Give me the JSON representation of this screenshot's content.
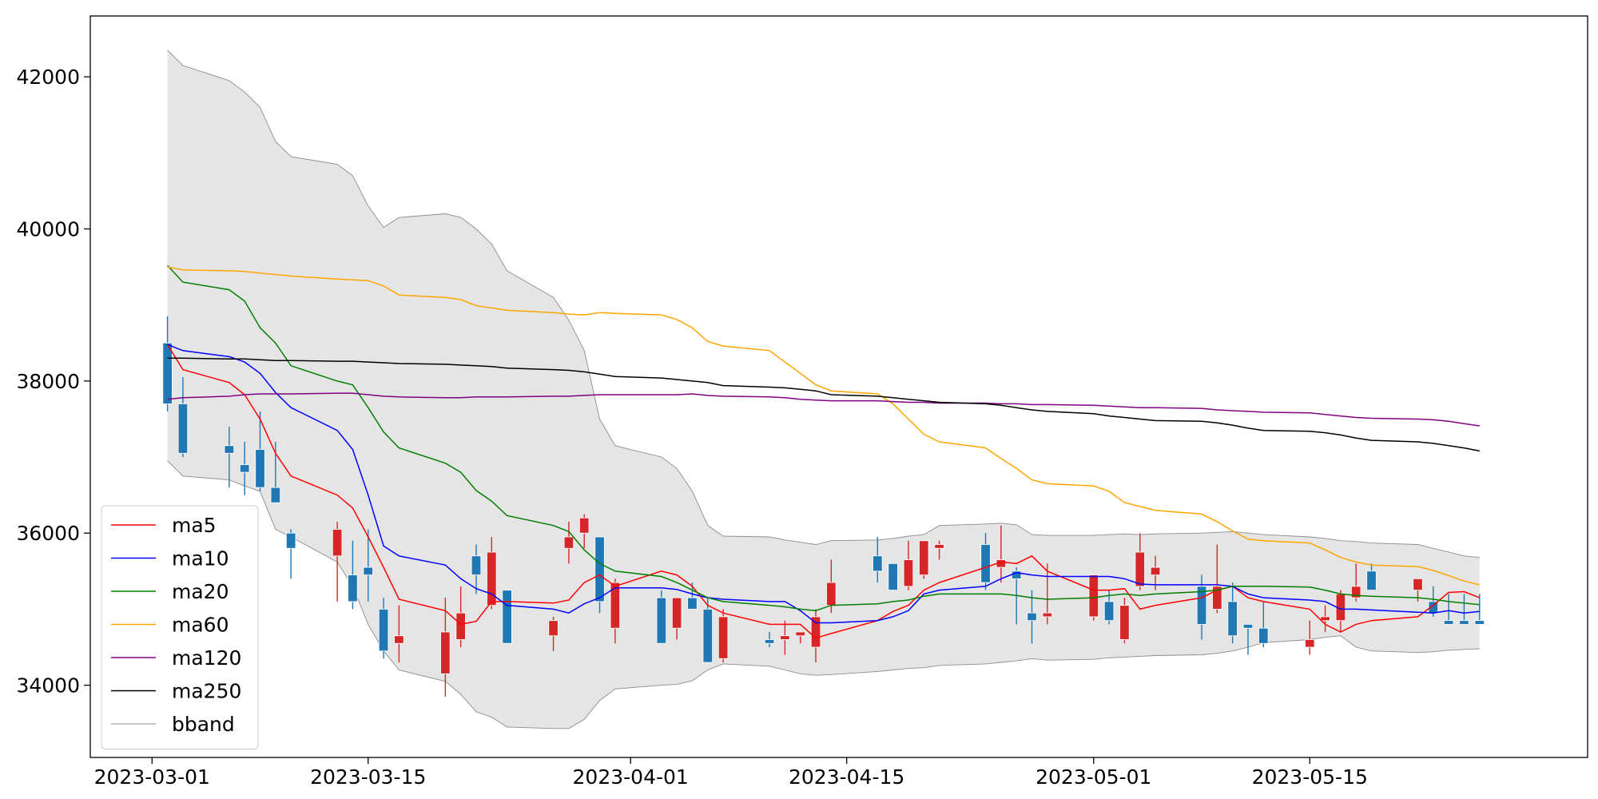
{
  "chart_data": {
    "type": "candlestick",
    "title": "",
    "xlabel": "",
    "ylabel": "",
    "ylim": [
      33050,
      42800
    ],
    "xlim": [
      "2023-02-25",
      "2023-06-02"
    ],
    "grid": false,
    "legend": {
      "placement": "lower-left"
    },
    "yticks": [
      34000,
      36000,
      38000,
      40000,
      42000
    ],
    "xticks": [
      "2023-03-01",
      "2023-03-15",
      "2023-04-01",
      "2023-04-15",
      "2023-05-01",
      "2023-05-15"
    ],
    "colors": {
      "up": "#d62728",
      "down": "#1f77b4",
      "band_fill": "#e5e5e5",
      "band_edge": "#8c8c8c"
    },
    "dates": [
      "2023-03-02",
      "2023-03-03",
      "2023-03-06",
      "2023-03-07",
      "2023-03-08",
      "2023-03-09",
      "2023-03-10",
      "2023-03-13",
      "2023-03-14",
      "2023-03-15",
      "2023-03-16",
      "2023-03-17",
      "2023-03-20",
      "2023-03-21",
      "2023-03-22",
      "2023-03-23",
      "2023-03-24",
      "2023-03-27",
      "2023-03-28",
      "2023-03-29",
      "2023-03-30",
      "2023-03-31",
      "2023-04-03",
      "2023-04-04",
      "2023-04-05",
      "2023-04-06",
      "2023-04-07",
      "2023-04-10",
      "2023-04-11",
      "2023-04-12",
      "2023-04-13",
      "2023-04-14",
      "2023-04-17",
      "2023-04-18",
      "2023-04-19",
      "2023-04-20",
      "2023-04-21",
      "2023-04-24",
      "2023-04-25",
      "2023-04-26",
      "2023-04-27",
      "2023-04-28",
      "2023-05-01",
      "2023-05-02",
      "2023-05-03",
      "2023-05-04",
      "2023-05-05",
      "2023-05-08",
      "2023-05-09",
      "2023-05-10",
      "2023-05-11",
      "2023-05-12",
      "2023-05-15",
      "2023-05-16",
      "2023-05-17",
      "2023-05-18",
      "2023-05-19",
      "2023-05-22",
      "2023-05-23",
      "2023-05-24",
      "2023-05-25",
      "2023-05-26"
    ],
    "candles": [
      [
        38500,
        38850,
        37600,
        37700
      ],
      [
        37700,
        38050,
        37000,
        37050
      ],
      [
        37150,
        37400,
        36600,
        37050
      ],
      [
        36900,
        37200,
        36500,
        36800
      ],
      [
        37100,
        37600,
        36550,
        36600
      ],
      [
        36600,
        37200,
        36400,
        36400
      ],
      [
        36000,
        36050,
        35400,
        35800
      ],
      [
        35700,
        36150,
        35100,
        36050
      ],
      [
        35450,
        35900,
        35000,
        35100
      ],
      [
        35550,
        36050,
        35100,
        35450
      ],
      [
        35000,
        35150,
        34350,
        34450
      ],
      [
        34550,
        35050,
        34300,
        34650
      ],
      [
        34150,
        35150,
        33850,
        34700
      ],
      [
        34600,
        35300,
        34500,
        34950
      ],
      [
        35700,
        35850,
        35200,
        35450
      ],
      [
        35050,
        35950,
        35000,
        35750
      ],
      [
        35250,
        35250,
        34550,
        34550
      ],
      [
        34650,
        34900,
        34450,
        34850
      ],
      [
        35800,
        36150,
        35600,
        35950
      ],
      [
        36000,
        36250,
        35800,
        36200
      ],
      [
        35950,
        35950,
        34950,
        35100
      ],
      [
        34750,
        35400,
        34550,
        35350
      ],
      [
        35150,
        35250,
        34550,
        34550
      ],
      [
        34750,
        35150,
        34600,
        35150
      ],
      [
        35150,
        35350,
        35000,
        35000
      ],
      [
        35000,
        35150,
        34300,
        34300
      ],
      [
        34350,
        35000,
        34300,
        34900
      ],
      [
        34600,
        34700,
        34500,
        34550
      ],
      [
        34600,
        34850,
        34400,
        34650
      ],
      [
        34650,
        34700,
        34550,
        34700
      ],
      [
        34500,
        35000,
        34300,
        34900
      ],
      [
        35050,
        35650,
        34950,
        35350
      ],
      [
        35700,
        35950,
        35350,
        35500
      ],
      [
        35600,
        35600,
        35250,
        35250
      ],
      [
        35300,
        35900,
        35250,
        35650
      ],
      [
        35450,
        35900,
        35400,
        35900
      ],
      [
        35800,
        35900,
        35650,
        35850
      ],
      [
        35850,
        36000,
        35250,
        35350
      ],
      [
        35550,
        36100,
        35350,
        35650
      ],
      [
        35500,
        35550,
        34800,
        35400
      ],
      [
        34950,
        35250,
        34550,
        34850
      ],
      [
        34900,
        35600,
        34800,
        34950
      ],
      [
        34900,
        35450,
        34850,
        35450
      ],
      [
        35100,
        35250,
        34800,
        34850
      ],
      [
        34600,
        35150,
        34550,
        35050
      ],
      [
        35300,
        36000,
        35250,
        35750
      ],
      [
        35450,
        35700,
        35250,
        35550
      ],
      [
        35300,
        35450,
        34600,
        34800
      ],
      [
        35000,
        35850,
        34950,
        35300
      ],
      [
        35100,
        35350,
        34550,
        34650
      ],
      [
        34800,
        34800,
        34400,
        34750
      ],
      [
        34750,
        35100,
        34500,
        34550
      ],
      [
        34500,
        34850,
        34400,
        34600
      ],
      [
        34850,
        35050,
        34700,
        34900
      ],
      [
        34850,
        35250,
        34700,
        35200
      ],
      [
        35150,
        35600,
        35100,
        35300
      ],
      [
        35500,
        35600,
        35250,
        35250
      ],
      [
        35250,
        35400,
        35100,
        35400
      ],
      [
        35100,
        35300,
        34900,
        34950
      ],
      [
        34850,
        35200,
        34800,
        34800
      ],
      [
        34850,
        35200,
        34800,
        34800
      ],
      [
        34850,
        35200,
        34800,
        34800
      ]
    ],
    "series": [
      {
        "name": "ma5",
        "color": "#ff0000",
        "values": [
          38480,
          38150,
          37980,
          37820,
          37500,
          37050,
          36750,
          36500,
          36330,
          35950,
          35550,
          35130,
          34980,
          34800,
          34840,
          35100,
          35100,
          35080,
          35120,
          35350,
          35450,
          35300,
          35500,
          35450,
          35300,
          35050,
          34950,
          34800,
          34800,
          34800,
          34620,
          34680,
          34850,
          34970,
          35050,
          35250,
          35350,
          35550,
          35620,
          35600,
          35700,
          35500,
          35250,
          35250,
          35270,
          35000,
          35050,
          35150,
          35250,
          35300,
          35150,
          35100,
          35000,
          34800,
          34700,
          34800,
          34850,
          34900,
          35050,
          35220,
          35230,
          35150
        ]
      },
      {
        "name": "ma10",
        "color": "#0000ff",
        "values": [
          38480,
          38400,
          38320,
          38250,
          38100,
          37850,
          37650,
          37350,
          37100,
          36500,
          35830,
          35700,
          35580,
          35400,
          35270,
          35200,
          35050,
          35000,
          34950,
          35070,
          35150,
          35280,
          35280,
          35260,
          35200,
          35150,
          35130,
          35100,
          35100,
          34980,
          34820,
          34820,
          34850,
          34900,
          34980,
          35200,
          35250,
          35300,
          35400,
          35480,
          35450,
          35430,
          35430,
          35430,
          35400,
          35330,
          35320,
          35320,
          35320,
          35300,
          35200,
          35150,
          35120,
          35100,
          35000,
          35000,
          34990,
          34960,
          34950,
          34980,
          34950,
          34970
        ]
      },
      {
        "name": "ma20",
        "color": "#008000",
        "values": [
          39520,
          39300,
          39200,
          39050,
          38700,
          38500,
          38200,
          38000,
          37950,
          37650,
          37330,
          37120,
          36920,
          36800,
          36560,
          36420,
          36230,
          36100,
          36020,
          35780,
          35600,
          35500,
          35430,
          35350,
          35250,
          35150,
          35100,
          35050,
          35030,
          35000,
          34980,
          35050,
          35070,
          35100,
          35120,
          35170,
          35200,
          35200,
          35200,
          35180,
          35150,
          35130,
          35150,
          35180,
          35200,
          35180,
          35200,
          35230,
          35250,
          35300,
          35300,
          35300,
          35290,
          35250,
          35200,
          35180,
          35170,
          35150,
          35130,
          35100,
          35080,
          35060
        ]
      },
      {
        "name": "ma60",
        "color": "#ffa500",
        "values": [
          39500,
          39460,
          39450,
          39440,
          39420,
          39400,
          39380,
          39340,
          39330,
          39320,
          39250,
          39130,
          39100,
          39070,
          38990,
          38960,
          38930,
          38900,
          38880,
          38870,
          38900,
          38890,
          38870,
          38810,
          38700,
          38520,
          38460,
          38400,
          38250,
          38100,
          37950,
          37870,
          37830,
          37700,
          37500,
          37300,
          37200,
          37120,
          36980,
          36850,
          36700,
          36650,
          36620,
          36550,
          36400,
          36350,
          36300,
          36250,
          36150,
          36030,
          35920,
          35900,
          35870,
          35780,
          35680,
          35620,
          35580,
          35560,
          35510,
          35440,
          35370,
          35320
        ]
      },
      {
        "name": "ma120",
        "color": "#800080",
        "values": [
          37760,
          37780,
          37800,
          37820,
          37830,
          37830,
          37830,
          37840,
          37840,
          37820,
          37800,
          37790,
          37780,
          37780,
          37790,
          37790,
          37790,
          37800,
          37800,
          37810,
          37820,
          37820,
          37820,
          37820,
          37830,
          37810,
          37800,
          37790,
          37780,
          37760,
          37750,
          37740,
          37740,
          37730,
          37720,
          37720,
          37710,
          37710,
          37700,
          37700,
          37690,
          37690,
          37680,
          37670,
          37660,
          37650,
          37650,
          37640,
          37620,
          37610,
          37600,
          37590,
          37580,
          37560,
          37540,
          37520,
          37510,
          37500,
          37490,
          37470,
          37440,
          37410
        ]
      },
      {
        "name": "ma250",
        "color": "#000000",
        "values": [
          38300,
          38300,
          38290,
          38290,
          38280,
          38270,
          38270,
          38260,
          38260,
          38250,
          38240,
          38230,
          38220,
          38210,
          38200,
          38190,
          38170,
          38150,
          38140,
          38120,
          38090,
          38060,
          38040,
          38020,
          38000,
          37980,
          37940,
          37920,
          37910,
          37890,
          37870,
          37820,
          37800,
          37780,
          37760,
          37740,
          37720,
          37700,
          37680,
          37650,
          37620,
          37600,
          37570,
          37540,
          37520,
          37500,
          37480,
          37470,
          37450,
          37420,
          37380,
          37350,
          37340,
          37320,
          37290,
          37250,
          37220,
          37200,
          37180,
          37150,
          37120,
          37080
        ]
      },
      {
        "name": "bband",
        "color": "#8c8c8c",
        "upper": [
          42350,
          42150,
          41950,
          41800,
          41600,
          41150,
          40950,
          40850,
          40700,
          40300,
          40020,
          40150,
          40200,
          40150,
          40000,
          39800,
          39450,
          39100,
          38800,
          38400,
          37500,
          37150,
          37000,
          36850,
          36550,
          36100,
          35960,
          35950,
          35910,
          35880,
          35850,
          35900,
          35910,
          35930,
          35960,
          35980,
          36100,
          36120,
          36130,
          36110,
          35980,
          35970,
          35970,
          35980,
          35990,
          35980,
          35990,
          36000,
          36010,
          36020,
          36000,
          35980,
          35950,
          35930,
          35900,
          35890,
          35870,
          35850,
          35800,
          35750,
          35700,
          35680
        ],
        "lower": [
          36950,
          36750,
          36700,
          36620,
          36550,
          36050,
          35950,
          35620,
          35300,
          34800,
          34450,
          34200,
          34050,
          33880,
          33650,
          33580,
          33450,
          33430,
          33430,
          33550,
          33800,
          33950,
          34000,
          34010,
          34060,
          34200,
          34280,
          34250,
          34200,
          34150,
          34130,
          34140,
          34180,
          34200,
          34220,
          34230,
          34260,
          34280,
          34300,
          34320,
          34350,
          34330,
          34340,
          34360,
          34370,
          34380,
          34390,
          34400,
          34420,
          34450,
          34500,
          34560,
          34600,
          34630,
          34650,
          34500,
          34450,
          34430,
          34440,
          34460,
          34470,
          34480
        ]
      }
    ]
  }
}
